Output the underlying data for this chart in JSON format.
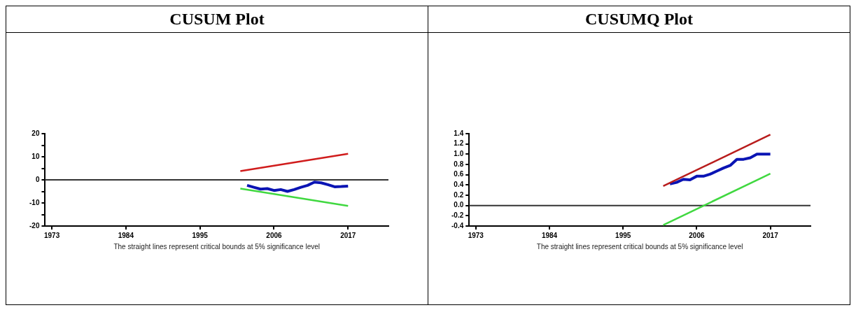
{
  "chart_data": [
    {
      "type": "line",
      "title": "CUSUM Plot",
      "xlim": [
        1972,
        2023
      ],
      "xticks": [
        1973,
        1984,
        1995,
        2006,
        2017
      ],
      "ylim": [
        -20,
        20
      ],
      "yticks": [
        -20,
        {
          "value": -15,
          "label": null
        },
        -10,
        {
          "value": -5,
          "label": null
        },
        0,
        {
          "value": 5,
          "label": null
        },
        10,
        {
          "value": 15,
          "label": null
        },
        20
      ],
      "grid": false,
      "legend": false,
      "marker": "none",
      "ref_lines": [
        {
          "axis": "y",
          "value": 0,
          "color": "#333333"
        }
      ],
      "annotations": [
        "The straight lines represent critical bounds at 5% significance level"
      ],
      "series": [
        {
          "color": "#d01c1c",
          "x": [
            2001,
            2017
          ],
          "values": [
            3.8,
            11.3
          ]
        },
        {
          "color": "#40d840",
          "x": [
            2001,
            2017
          ],
          "values": [
            -3.8,
            -11.3
          ]
        },
        {
          "color": "#0a14b4",
          "x": [
            2002,
            2003,
            2004,
            2005,
            2006,
            2007,
            2008,
            2009,
            2010,
            2011,
            2012,
            2013,
            2014,
            2015,
            2016,
            2017
          ],
          "values": [
            -2.4,
            -3.2,
            -4.0,
            -3.8,
            -4.6,
            -4.2,
            -5.0,
            -4.2,
            -3.2,
            -2.4,
            -1.0,
            -1.3,
            -2.1,
            -3.0,
            -2.9,
            -2.7
          ]
        }
      ]
    },
    {
      "type": "line",
      "title": "CUSUMQ Plot",
      "xlim": [
        1972,
        2023
      ],
      "xticks": [
        1973,
        1984,
        1995,
        2006,
        2017
      ],
      "ylim": [
        -0.4,
        1.4
      ],
      "yticks": [
        {
          "value": -0.4,
          "label": "-0.4"
        },
        {
          "value": -0.2,
          "label": "-0.2"
        },
        {
          "value": 0,
          "label": "0.0"
        },
        {
          "value": 0.2,
          "label": "0.2"
        },
        {
          "value": 0.4,
          "label": "0.4"
        },
        {
          "value": 0.6,
          "label": "0.6"
        },
        {
          "value": 0.8,
          "label": "0.8"
        },
        {
          "value": 1,
          "label": "1.0"
        },
        {
          "value": 1.2,
          "label": "1.2"
        },
        {
          "value": 1.4,
          "label": "1.4"
        }
      ],
      "grid": false,
      "legend": false,
      "marker": "none",
      "ref_lines": [
        {
          "axis": "y",
          "value": 0,
          "color": "#333333"
        }
      ],
      "annotations": [
        "The straight lines represent critical bounds at 5% significance level"
      ],
      "series": [
        {
          "color": "#b81c1c",
          "x": [
            2001,
            2017
          ],
          "values": [
            0.38,
            1.38
          ]
        },
        {
          "color": "#40d840",
          "x": [
            2001,
            2017
          ],
          "values": [
            -0.38,
            0.62
          ]
        },
        {
          "color": "#0a14b4",
          "x": [
            2002,
            2003,
            2004,
            2005,
            2006,
            2007,
            2008,
            2009,
            2010,
            2011,
            2012,
            2013,
            2014,
            2015,
            2016,
            2017
          ],
          "values": [
            0.42,
            0.45,
            0.51,
            0.5,
            0.57,
            0.57,
            0.61,
            0.67,
            0.73,
            0.78,
            0.9,
            0.9,
            0.93,
            1.0,
            1.0,
            1.0
          ]
        }
      ]
    }
  ]
}
